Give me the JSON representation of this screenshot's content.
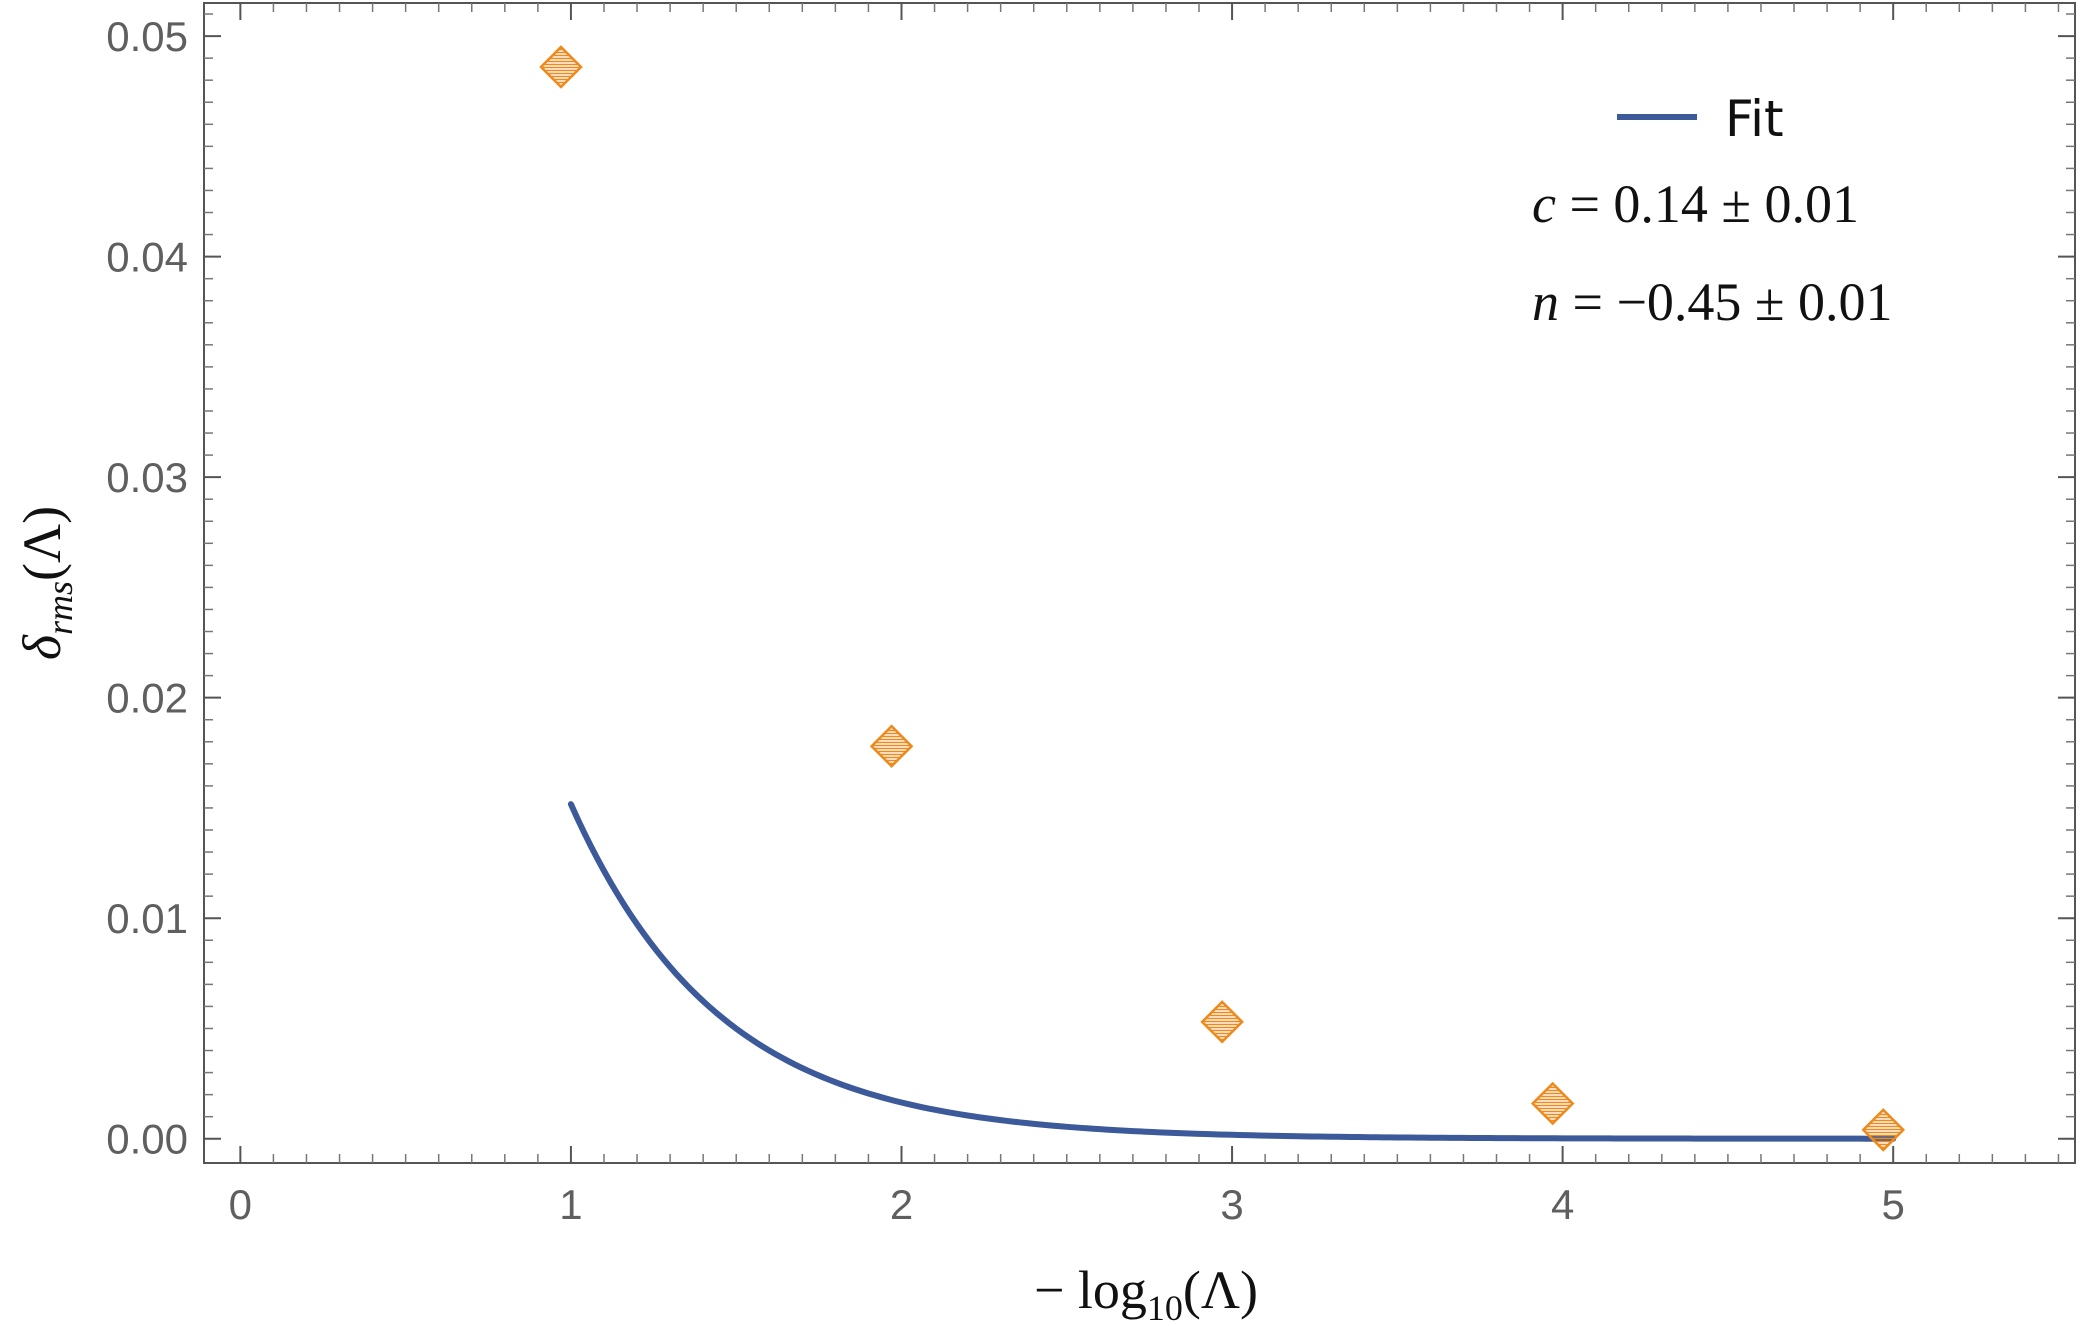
{
  "chart_data": {
    "type": "scatter",
    "title": "",
    "xlabel": "−log10(Λ)",
    "ylabel": "δrms(Λ)",
    "xlabel_parts": {
      "prefix": "− log",
      "sub": "10",
      "suffix": "(Λ)"
    },
    "ylabel_parts": {
      "main": "δ",
      "sub": "rms",
      "suffix": "(Λ)"
    },
    "xlim": [
      -0.11,
      5.55
    ],
    "ylim": [
      -0.0011,
      0.0515
    ],
    "xticks": [
      0,
      1,
      2,
      3,
      4,
      5
    ],
    "xtick_labels": [
      "0",
      "1",
      "2",
      "3",
      "4",
      "5"
    ],
    "yticks": [
      0.0,
      0.01,
      0.02,
      0.03,
      0.04,
      0.05
    ],
    "ytick_labels": [
      "0.00",
      "0.01",
      "0.02",
      "0.03",
      "0.04",
      "0.05"
    ],
    "grid": false,
    "legend_position": "top-right",
    "series": [
      {
        "kind": "points",
        "marker": "hatched-diamond",
        "color": "#ee8a1c",
        "x": [
          0.97,
          1.97,
          2.97,
          3.97,
          4.97
        ],
        "y": [
          0.0486,
          0.0178,
          0.0053,
          0.0016,
          0.0004
        ]
      },
      {
        "name": "Fit",
        "kind": "line",
        "color": "#3c5a9a",
        "model": "c*exp(x/n)",
        "params": {
          "c": 0.14,
          "n": -0.45
        },
        "x_range": [
          1.0,
          5.0
        ]
      }
    ],
    "annotations": [
      {
        "id": "c-value",
        "symbol": "c",
        "text": " = 0.14 ± 0.01"
      },
      {
        "id": "n-value",
        "symbol": "n",
        "text": " = −0.45 ± 0.01"
      }
    ]
  }
}
